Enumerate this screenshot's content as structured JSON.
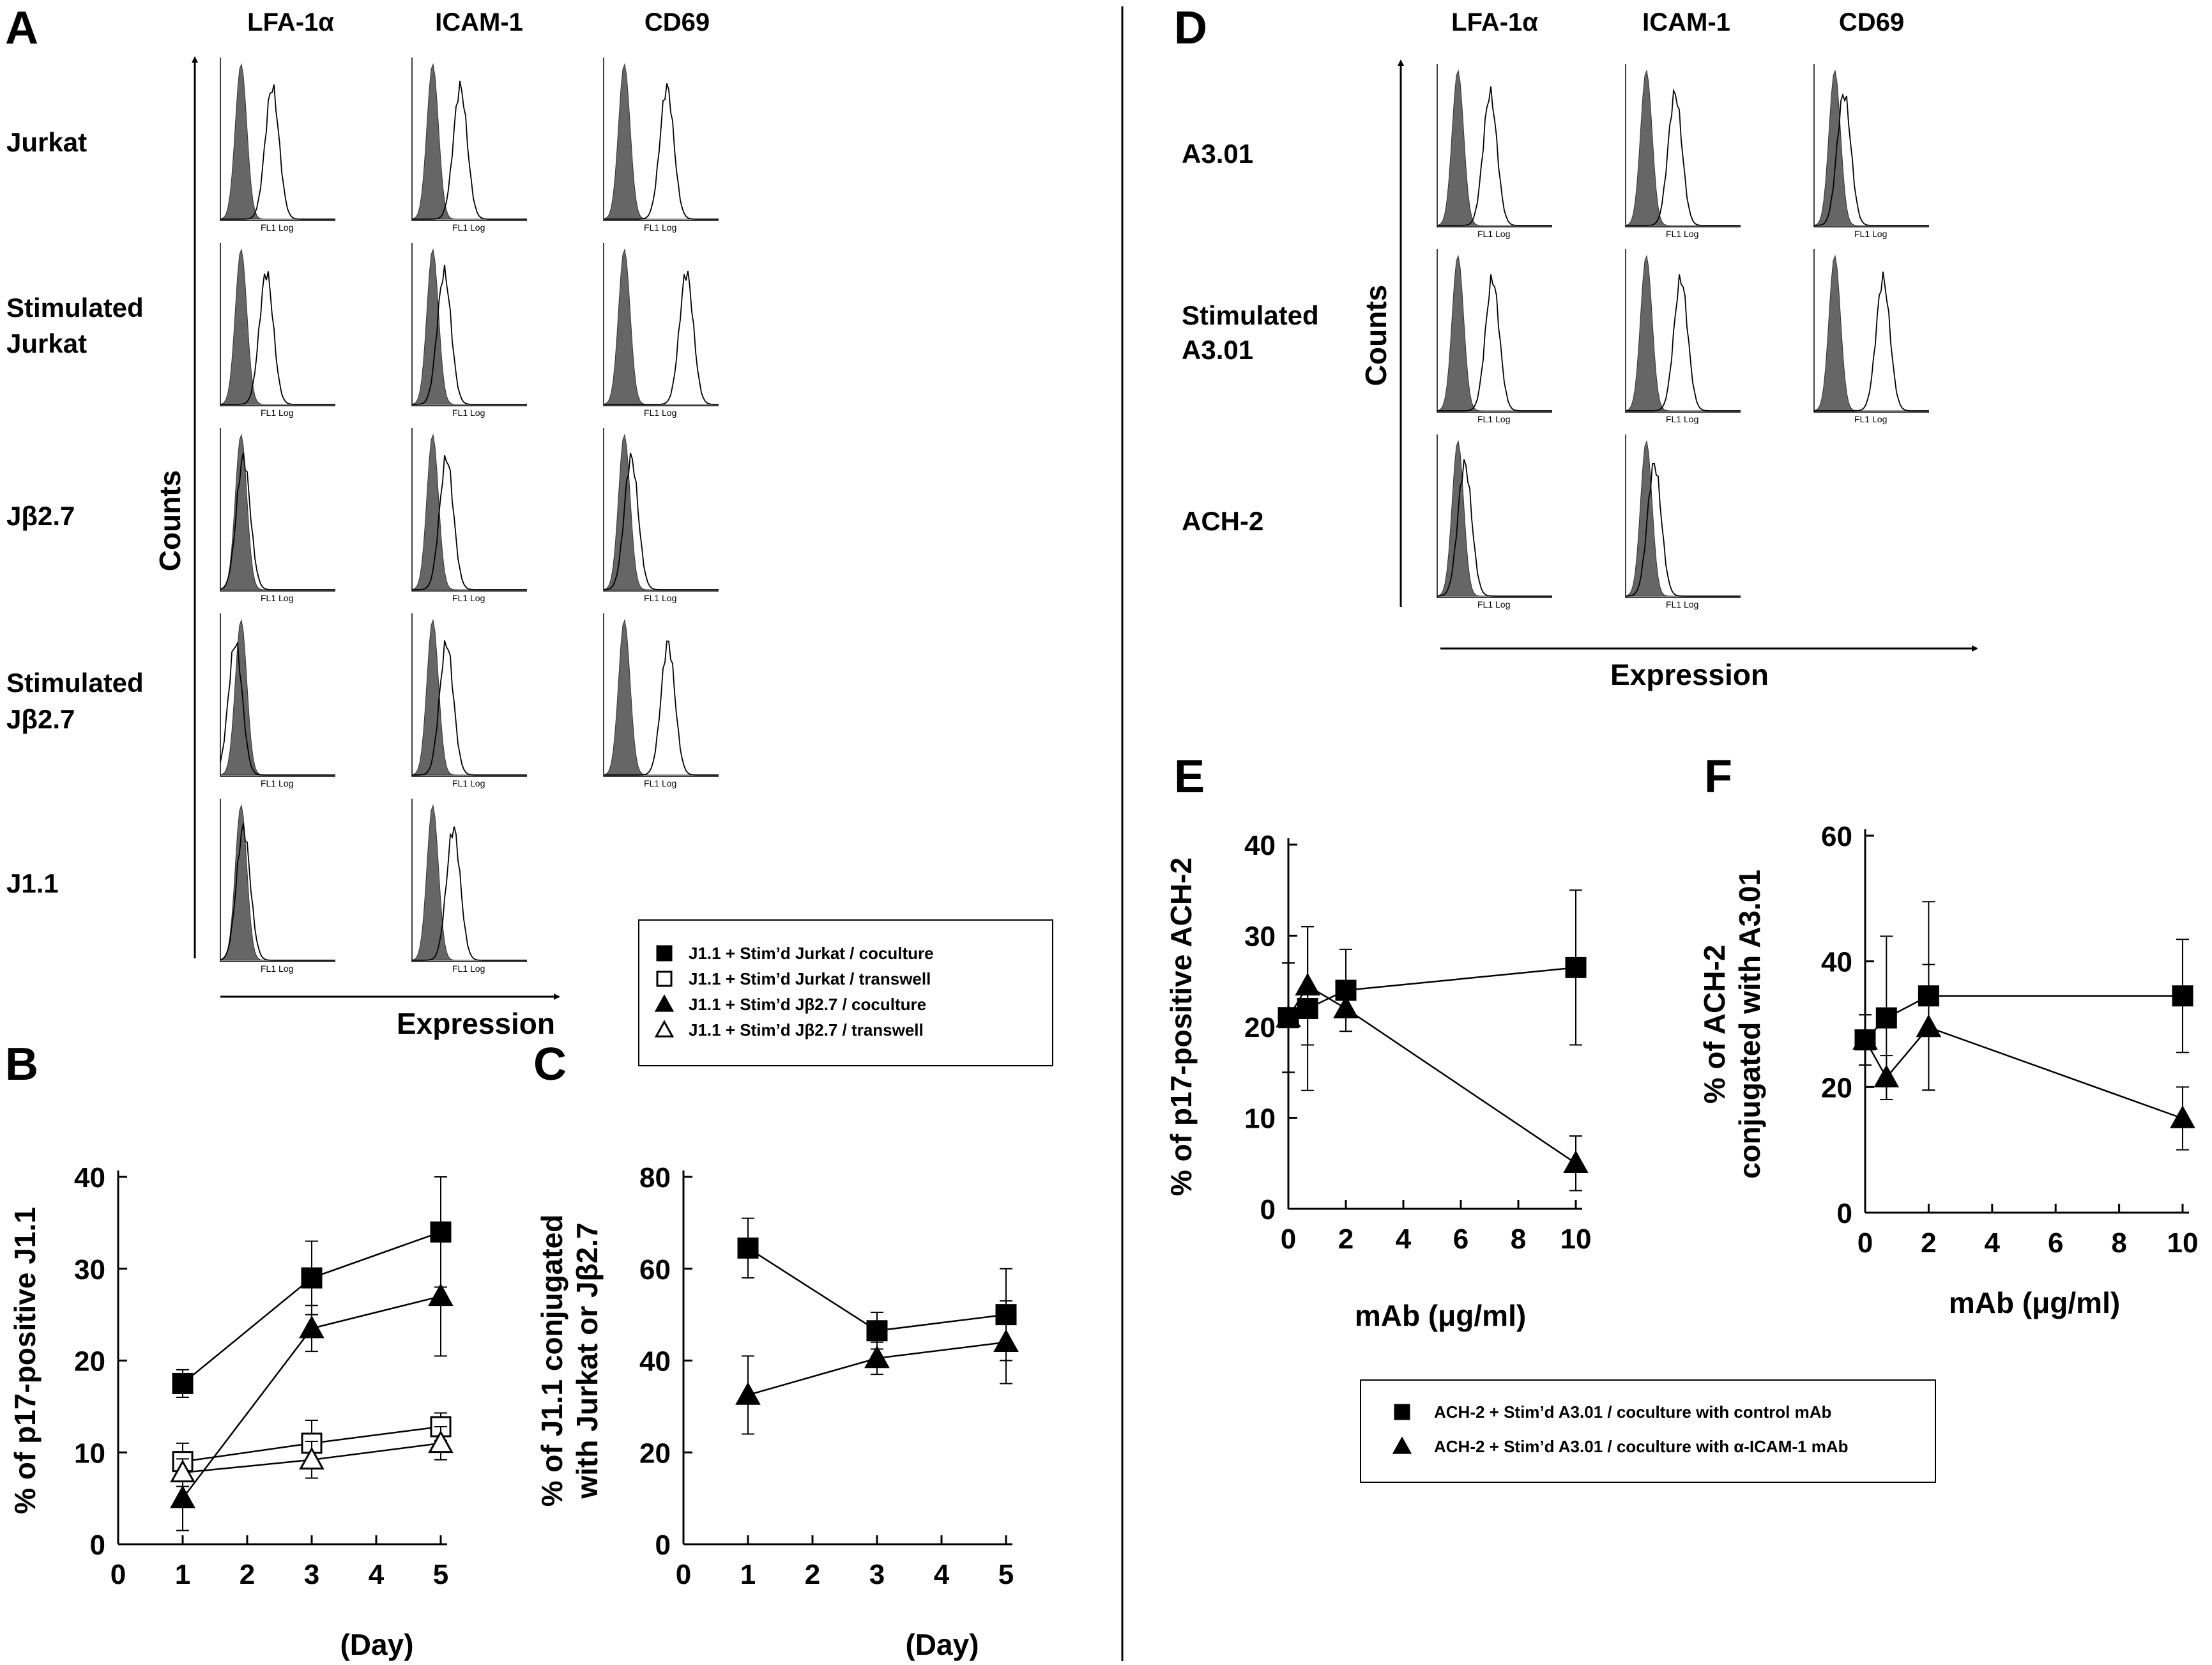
{
  "panel_labels": {
    "A": "A",
    "B": "B",
    "C": "C",
    "D": "D",
    "E": "E",
    "F": "F"
  },
  "panel_A": {
    "columns": [
      "LFA-1α",
      "ICAM-1",
      "CD69"
    ],
    "rows": [
      {
        "label_lines": [
          "Jurkat"
        ],
        "n": 3
      },
      {
        "label_lines": [
          "Stimulated",
          "Jurkat"
        ],
        "n": 3
      },
      {
        "label_lines": [
          "Jβ2.7"
        ],
        "n": 3
      },
      {
        "label_lines": [
          "Stimulated",
          "Jβ2.7"
        ],
        "n": 3
      },
      {
        "label_lines": [
          "J1.1"
        ],
        "n": 2
      }
    ],
    "y_axis_label": "Counts",
    "x_axis_label": "Expression",
    "hist_xlabel": "FL1 Log",
    "open_peak": [
      [
        0.45,
        0.42,
        0.55
      ],
      [
        0.4,
        0.28,
        0.72
      ],
      [
        0.2,
        0.3,
        0.24
      ],
      [
        0.13,
        0.3,
        0.56
      ],
      [
        0.2,
        0.36,
        null
      ]
    ]
  },
  "panel_D": {
    "columns": [
      "LFA-1α",
      "ICAM-1",
      "CD69"
    ],
    "rows": [
      {
        "label_lines": [
          "A3.01"
        ],
        "n": 3
      },
      {
        "label_lines": [
          "Stimulated",
          "A3.01"
        ],
        "n": 3
      },
      {
        "label_lines": [
          "ACH-2"
        ],
        "n": 2
      }
    ],
    "y_axis_label": "Counts",
    "x_axis_label": "Expression",
    "hist_xlabel": "FL1 Log",
    "open_peak": [
      [
        0.46,
        0.43,
        0.26
      ],
      [
        0.48,
        0.48,
        0.6
      ],
      [
        0.24,
        0.25,
        null
      ]
    ]
  },
  "legend_BC": [
    {
      "marker": "square-filled",
      "label": "J1.1 + Stim’d Jurkat  / coculture"
    },
    {
      "marker": "square-open",
      "label": "J1.1 + Stim’d Jurkat / transwell"
    },
    {
      "marker": "triangle-filled",
      "label": "J1.1 + Stim’d Jβ2.7 / coculture"
    },
    {
      "marker": "triangle-open",
      "label": "J1.1 + Stim’d Jβ2.7 / transwell"
    }
  ],
  "legend_EF": [
    {
      "marker": "square-filled",
      "label": "ACH-2 + Stim’d A3.01 / coculture with control mAb"
    },
    {
      "marker": "triangle-filled",
      "label": "ACH-2 + Stim’d A3.01 / coculture with α-ICAM-1 mAb"
    }
  ],
  "chart_data": [
    {
      "panel": "B",
      "type": "line",
      "xlabel": "(Day)",
      "ylabel": "% of p17-positive J1.1",
      "xlim": [
        0,
        5
      ],
      "ylim": [
        0,
        40
      ],
      "xticks": [
        0,
        1,
        2,
        3,
        4,
        5
      ],
      "yticks": [
        0,
        10,
        20,
        30,
        40
      ],
      "x": [
        1,
        3,
        5
      ],
      "series": [
        {
          "marker": "square-filled",
          "values": [
            17.5,
            29,
            34
          ],
          "err": [
            1.5,
            4,
            6
          ]
        },
        {
          "marker": "triangle-filled",
          "values": [
            5,
            23.5,
            27
          ],
          "err": [
            3.5,
            2.5,
            6.5
          ]
        },
        {
          "marker": "square-open",
          "values": [
            9,
            11,
            12.8
          ],
          "err": [
            2,
            2.5,
            1.5
          ]
        },
        {
          "marker": "triangle-open",
          "values": [
            7.8,
            9.2,
            11
          ],
          "err": [
            1.5,
            2,
            1.8
          ]
        }
      ]
    },
    {
      "panel": "C",
      "type": "line",
      "xlabel": "(Day)",
      "ylabel_lines": [
        "% of J1.1 conjugated",
        "with Jurkat or Jβ2.7"
      ],
      "xlim": [
        0,
        5
      ],
      "ylim": [
        0,
        80
      ],
      "xticks": [
        0,
        1,
        2,
        3,
        4,
        5
      ],
      "yticks": [
        0,
        20,
        40,
        60,
        80
      ],
      "x": [
        1,
        3,
        5
      ],
      "series": [
        {
          "marker": "square-filled",
          "values": [
            64.5,
            46.5,
            50
          ],
          "err": [
            6.5,
            4,
            10
          ]
        },
        {
          "marker": "triangle-filled",
          "values": [
            32.5,
            40.5,
            44
          ],
          "err": [
            8.5,
            3.5,
            9
          ]
        }
      ]
    },
    {
      "panel": "E",
      "type": "line",
      "xlabel": "mAb (μg/ml)",
      "ylabel": "% of p17-positive ACH-2",
      "xlim": [
        0,
        10
      ],
      "ylim": [
        0,
        40
      ],
      "xticks": [
        0,
        2,
        4,
        6,
        8,
        10
      ],
      "yticks": [
        0,
        10,
        20,
        30,
        40
      ],
      "x": [
        0,
        0.67,
        2,
        10
      ],
      "series": [
        {
          "marker": "square-filled",
          "values": [
            21,
            22,
            24,
            26.5
          ],
          "err": [
            6,
            9,
            4.5,
            8.5
          ]
        },
        {
          "marker": "triangle-filled",
          "values": [
            21,
            24.5,
            22,
            5
          ],
          "err": [
            6,
            6.5,
            2.5,
            3
          ]
        }
      ]
    },
    {
      "panel": "F",
      "type": "line",
      "xlabel": "mAb (μg/ml)",
      "ylabel_lines": [
        "% of ACH-2",
        "conjugated with A3.01"
      ],
      "xlim": [
        0,
        10
      ],
      "ylim": [
        0,
        60
      ],
      "xticks": [
        0,
        2,
        4,
        6,
        8,
        10
      ],
      "yticks": [
        0,
        20,
        40,
        60
      ],
      "x": [
        0,
        0.67,
        2,
        10
      ],
      "series": [
        {
          "marker": "square-filled",
          "values": [
            27.5,
            31,
            34.5,
            34.5
          ],
          "err": [
            4,
            13,
            15,
            9
          ]
        },
        {
          "marker": "triangle-filled",
          "values": [
            27.5,
            21.5,
            29.5,
            15
          ],
          "err": [
            4,
            3.5,
            10,
            5
          ]
        }
      ]
    }
  ]
}
